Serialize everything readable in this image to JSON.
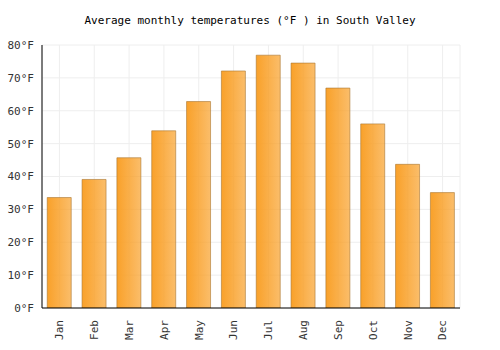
{
  "chart_data": {
    "type": "bar",
    "title": "Average monthly temperatures (°F ) in South Valley",
    "categories": [
      "Jan",
      "Feb",
      "Mar",
      "Apr",
      "May",
      "Jun",
      "Jul",
      "Aug",
      "Sep",
      "Oct",
      "Nov",
      "Dec"
    ],
    "values": [
      33.6,
      39.1,
      45.7,
      53.9,
      62.8,
      72.1,
      76.9,
      74.5,
      66.9,
      56.0,
      43.7,
      35.1
    ],
    "color": "#f9a12a",
    "ylim": [
      0,
      80
    ],
    "yticks": [
      {
        "value": 0,
        "label": "0°F"
      },
      {
        "value": 10,
        "label": "10°F"
      },
      {
        "value": 20,
        "label": "20°F"
      },
      {
        "value": 30,
        "label": "30°F"
      },
      {
        "value": 40,
        "label": "40°F"
      },
      {
        "value": 50,
        "label": "50°F"
      },
      {
        "value": 60,
        "label": "60°F"
      },
      {
        "value": 70,
        "label": "70°F"
      },
      {
        "value": 80,
        "label": "80°F"
      }
    ],
    "grid": true
  }
}
